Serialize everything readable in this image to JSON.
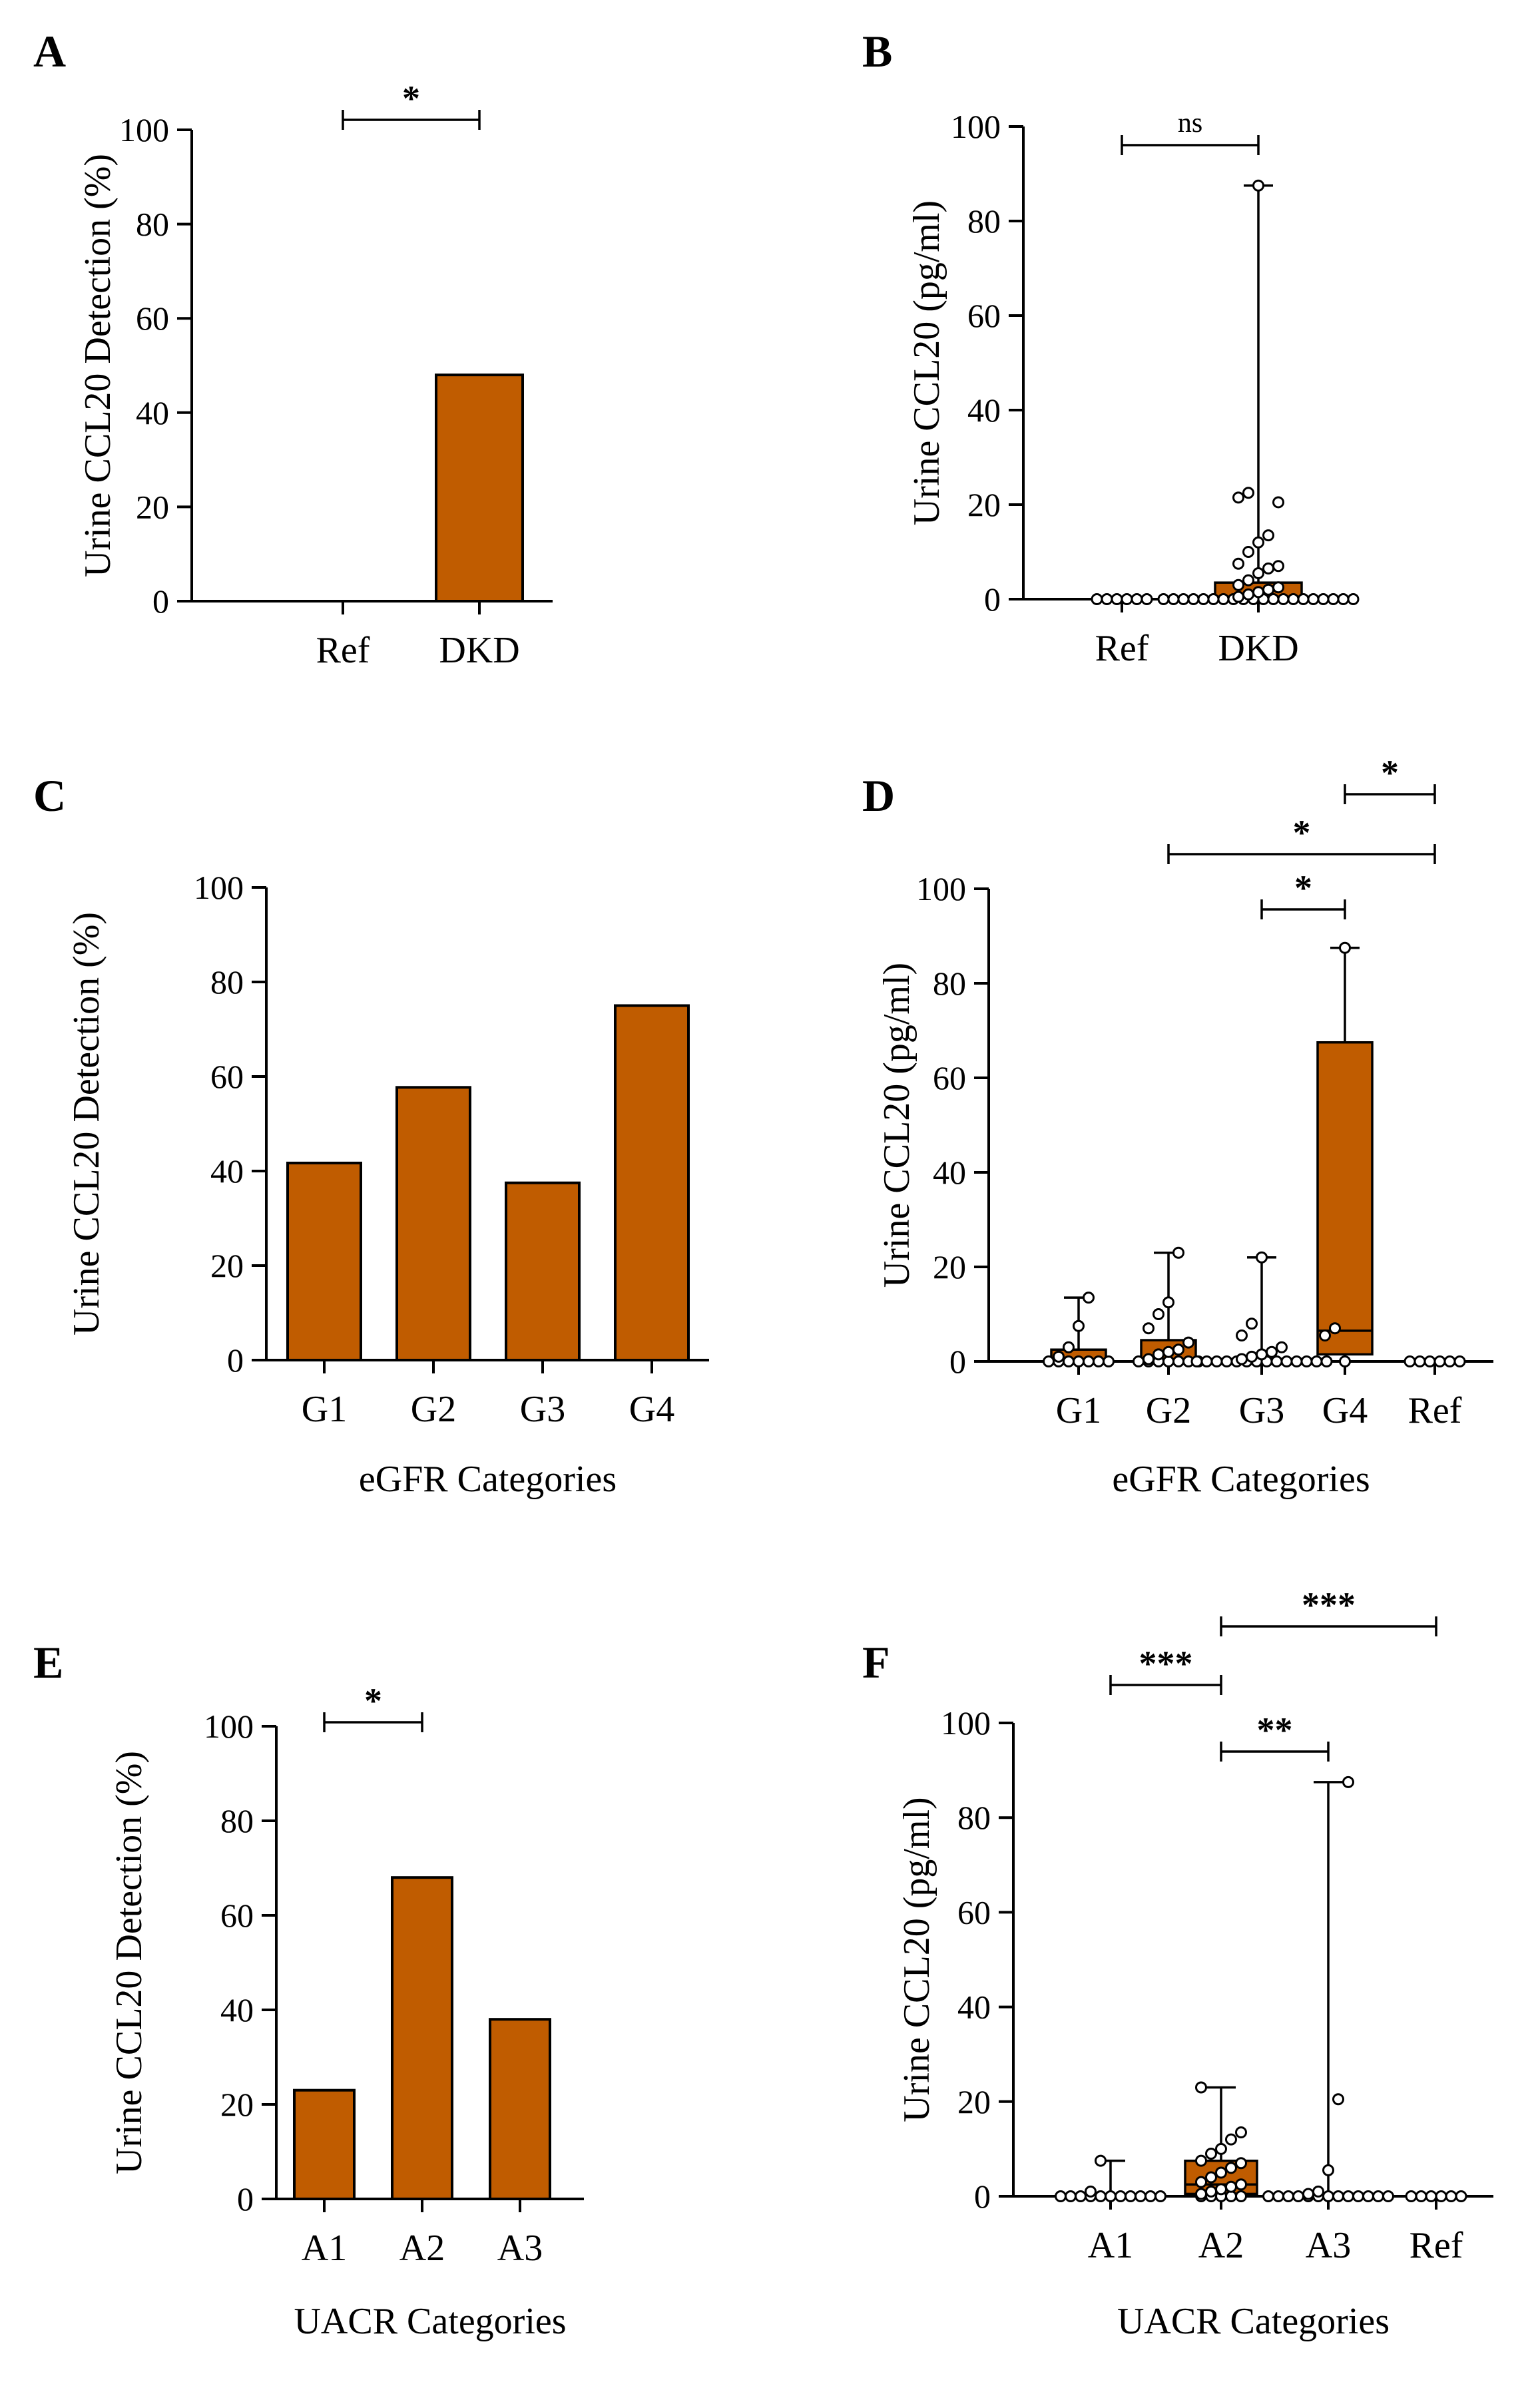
{
  "colors": {
    "bar": "#C05C00",
    "edge": "#000000",
    "point_fill": "#ffffff"
  },
  "chart_data": [
    {
      "panel": "A",
      "type": "bar",
      "categories": [
        "Ref",
        "DKD"
      ],
      "values": [
        0,
        48
      ],
      "ylabel": "Urine CCL20 Detection (%)",
      "xlabel": "",
      "ylim": [
        0,
        100
      ],
      "yticks": [
        "0",
        "20",
        "40",
        "60",
        "80",
        "100"
      ],
      "significance": [
        {
          "from": 0,
          "to": 1,
          "label": "*"
        }
      ]
    },
    {
      "panel": "B",
      "type": "box",
      "categories": [
        "Ref",
        "DKD"
      ],
      "boxes": [
        {
          "min": 0,
          "q1": 0,
          "median": 0,
          "q3": 0,
          "max": 0
        },
        {
          "min": 0,
          "q1": 0,
          "median": 0.5,
          "q3": 3.5,
          "max": 87.5
        }
      ],
      "points": [
        [
          0,
          0,
          0,
          0,
          0,
          0
        ],
        [
          0,
          0,
          0,
          0,
          0,
          0,
          0,
          0,
          0,
          0,
          0,
          0,
          0,
          0,
          0,
          0,
          0,
          0,
          0,
          0,
          0.5,
          1,
          1.5,
          2,
          2.5,
          3,
          4,
          5.5,
          6.5,
          7,
          7.5,
          10,
          12,
          13.5,
          20.5,
          21.5,
          22.5,
          87.5
        ]
      ],
      "ylabel": "Urine CCL20 (pg/ml)",
      "xlabel": "",
      "ylim": [
        0,
        100
      ],
      "yticks": [
        "0",
        "20",
        "40",
        "60",
        "80",
        "100"
      ],
      "significance": [
        {
          "from": 0,
          "to": 1,
          "label": "ns"
        }
      ]
    },
    {
      "panel": "C",
      "type": "bar",
      "categories": [
        "G1",
        "G2",
        "G3",
        "G4"
      ],
      "values": [
        41.7,
        57.7,
        37.5,
        75
      ],
      "ylabel": "Urine CCL20 Detection (%)",
      "xlabel": "eGFR Categories",
      "ylim": [
        0,
        100
      ],
      "yticks": [
        "0",
        "20",
        "40",
        "60",
        "80",
        "100"
      ],
      "significance": []
    },
    {
      "panel": "D",
      "type": "box",
      "categories": [
        "G1",
        "G2",
        "G3",
        "G4",
        "Ref"
      ],
      "boxes": [
        {
          "min": 0,
          "q1": 0,
          "median": 0,
          "q3": 2.5,
          "max": 13.5
        },
        {
          "min": 0,
          "q1": 0,
          "median": 0.5,
          "q3": 4.5,
          "max": 23
        },
        {
          "min": 0,
          "q1": 0,
          "median": 0,
          "q3": 0.5,
          "max": 22
        },
        {
          "min": 0,
          "q1": 1.5,
          "median": 6.5,
          "q3": 67.5,
          "max": 87.5
        },
        {
          "min": 0,
          "q1": 0,
          "median": 0,
          "q3": 0,
          "max": 0
        }
      ],
      "points": [
        [
          0,
          0,
          0,
          0,
          0,
          0,
          0,
          1,
          3,
          7.5,
          13.5
        ],
        [
          0,
          0,
          0,
          0,
          0,
          0,
          0,
          0.5,
          1.5,
          2,
          2.5,
          4,
          7,
          10,
          12.5,
          23
        ],
        [
          0,
          0,
          0,
          0,
          0,
          0,
          0,
          0,
          0,
          0,
          0,
          0,
          0,
          0,
          0.5,
          1,
          1.5,
          2,
          3,
          5.5,
          8,
          22
        ],
        [
          0,
          5.5,
          7,
          87.5
        ],
        [
          0,
          0,
          0,
          0,
          0,
          0
        ]
      ],
      "ylabel": "Urine CCL20 (pg/ml)",
      "xlabel": "eGFR Categories",
      "ylim": [
        0,
        100
      ],
      "yticks": [
        "0",
        "20",
        "40",
        "60",
        "80",
        "100"
      ],
      "significance": [
        {
          "from": 3,
          "to": 4,
          "label": "*"
        },
        {
          "from": 1,
          "to": 4,
          "label": "*"
        },
        {
          "from": 2,
          "to": 3,
          "label": "*"
        }
      ]
    },
    {
      "panel": "E",
      "type": "bar",
      "categories": [
        "A1",
        "A2",
        "A3"
      ],
      "values": [
        23,
        68,
        38
      ],
      "ylabel": "Urine CCL20 Detection (%)",
      "xlabel": "UACR Categories",
      "ylim": [
        0,
        100
      ],
      "yticks": [
        "0",
        "20",
        "40",
        "60",
        "80",
        "100"
      ],
      "significance": [
        {
          "from": 0,
          "to": 1,
          "label": "*"
        }
      ]
    },
    {
      "panel": "F",
      "type": "box",
      "categories": [
        "A1",
        "A2",
        "A3",
        "Ref"
      ],
      "boxes": [
        {
          "min": 0,
          "q1": 0,
          "median": 0,
          "q3": 0,
          "max": 7.5
        },
        {
          "min": 0,
          "q1": 0.5,
          "median": 2.5,
          "q3": 7.5,
          "max": 23
        },
        {
          "min": 0,
          "q1": 0,
          "median": 0,
          "q3": 0.5,
          "max": 87.5
        },
        {
          "min": 0,
          "q1": 0,
          "median": 0,
          "q3": 0,
          "max": 0
        }
      ],
      "points": [
        [
          0,
          0,
          0,
          0,
          0,
          0,
          0,
          0,
          0,
          0,
          0,
          1,
          7.5
        ],
        [
          0,
          0,
          0,
          0,
          0,
          0.5,
          1,
          1.5,
          2,
          2.5,
          3,
          4,
          5,
          6,
          7,
          7.5,
          9,
          10,
          12,
          13.5,
          23
        ],
        [
          0,
          0,
          0,
          0,
          0,
          0,
          0,
          0,
          0,
          0,
          0,
          0,
          0,
          0.5,
          1,
          5.5,
          20.5,
          87.5
        ],
        [
          0,
          0,
          0,
          0,
          0,
          0
        ]
      ],
      "ylabel": "Urine CCL20 (pg/ml)",
      "xlabel": "UACR Categories",
      "ylim": [
        0,
        100
      ],
      "yticks": [
        "0",
        "20",
        "40",
        "60",
        "80",
        "100"
      ],
      "significance": [
        {
          "from": 0,
          "to": 1,
          "label": "***"
        },
        {
          "from": 1,
          "to": 3,
          "label": "***"
        },
        {
          "from": 1,
          "to": 2,
          "label": "**"
        }
      ]
    }
  ]
}
